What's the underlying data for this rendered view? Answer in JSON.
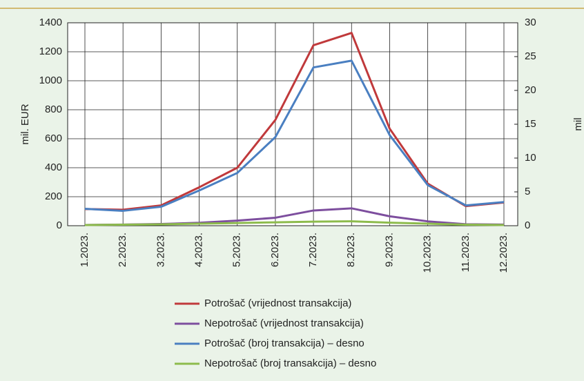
{
  "chart_data": {
    "type": "line",
    "ylabel": "mil. EUR",
    "y2label": "mil",
    "categories": [
      "1.2023.",
      "2.2023.",
      "3.2023.",
      "4.2023.",
      "5.2023.",
      "6.2023.",
      "7.2023.",
      "8.2023.",
      "9.2023.",
      "10.2023.",
      "11.2023.",
      "12.2023."
    ],
    "series": [
      {
        "name": "Potrošač (vrijednost transakcija)",
        "color": "#c0393b",
        "values": [
          115,
          110,
          140,
          265,
          400,
          730,
          1245,
          1330,
          670,
          290,
          135,
          160
        ]
      },
      {
        "name": "Nepotrošač (vrijednost transakcija)",
        "color": "#7d4e9e",
        "values": [
          5,
          8,
          12,
          20,
          35,
          55,
          105,
          120,
          65,
          30,
          10,
          8
        ]
      },
      {
        "name": "Potrošač (broj transakcija) – desno",
        "color": "#4a7fc1",
        "axis": "y2",
        "values": [
          2.5,
          2.2,
          2.8,
          5.2,
          7.8,
          13.1,
          23.4,
          24.4,
          13.4,
          6.0,
          3.0,
          3.5
        ]
      },
      {
        "name": "Nepotrošač (broj transakcija) – desno",
        "color": "#8dbb4c",
        "axis": "y2",
        "values": [
          0.1,
          0.15,
          0.2,
          0.3,
          0.4,
          0.5,
          0.6,
          0.65,
          0.45,
          0.3,
          0.15,
          0.1
        ]
      }
    ],
    "ylim": [
      0,
      1400
    ],
    "yticks": [
      0,
      200,
      400,
      600,
      800,
      1000,
      1200,
      1400
    ],
    "y2lim": [
      0,
      30
    ],
    "y2ticks": [
      0,
      5,
      10,
      15,
      20,
      25,
      30
    ],
    "grid": true
  }
}
